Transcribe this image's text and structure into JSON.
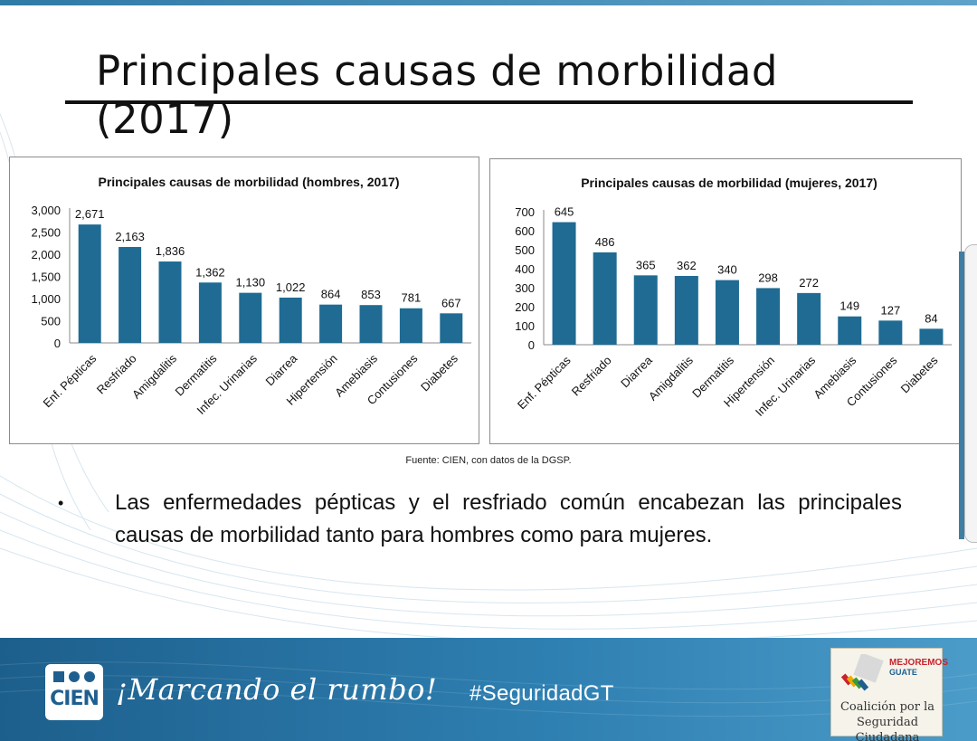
{
  "slide": {
    "title": "Principales causas de morbilidad (2017)",
    "source": "Fuente: CIEN, con datos de la DGSP.",
    "bullet": "Las enfermedades pépticas y el resfriado común encabezan las principales causas de morbilidad tanto para hombres como para mujeres."
  },
  "colors": {
    "bar": "#1f6b93",
    "accent": "#2e7fb1"
  },
  "chart_data": [
    {
      "type": "bar",
      "title": "Principales causas de morbilidad (hombres, 2017)",
      "categories": [
        "Enf. Pépticas",
        "Resfriado",
        "Amigdalitis",
        "Dermatitis",
        "Infec. Urinarias",
        "Diarrea",
        "Hipertensión",
        "Amebiasis",
        "Contusiones",
        "Diabetes"
      ],
      "values": [
        2671,
        2163,
        1836,
        1362,
        1130,
        1022,
        864,
        853,
        781,
        667
      ],
      "value_labels": [
        "2,671",
        "2,163",
        "1,836",
        "1,362",
        "1,130",
        "1,022",
        "864",
        "853",
        "781",
        "667"
      ],
      "yticks": [
        0,
        500,
        1000,
        1500,
        2000,
        2500,
        3000
      ],
      "ytick_labels": [
        "0",
        "500",
        "1,000",
        "1,500",
        "2,000",
        "2,500",
        "3,000"
      ],
      "ylim": [
        0,
        3000
      ],
      "xlabel": "",
      "ylabel": "",
      "grid": false
    },
    {
      "type": "bar",
      "title": "Principales causas de morbilidad (mujeres, 2017)",
      "categories": [
        "Enf. Pépticas",
        "Resfriado",
        "Diarrea",
        "Amigdalitis",
        "Dermatitis",
        "Hipertensión",
        "Infec. Urinarias",
        "Amebiasis",
        "Contusiones",
        "Diabetes"
      ],
      "values": [
        645,
        486,
        365,
        362,
        340,
        298,
        272,
        149,
        127,
        84
      ],
      "value_labels": [
        "645",
        "486",
        "365",
        "362",
        "340",
        "298",
        "272",
        "149",
        "127",
        "84"
      ],
      "yticks": [
        0,
        100,
        200,
        300,
        400,
        500,
        600,
        700
      ],
      "ytick_labels": [
        "0",
        "100",
        "200",
        "300",
        "400",
        "500",
        "600",
        "700"
      ],
      "ylim": [
        0,
        700
      ],
      "xlabel": "",
      "ylabel": "",
      "grid": false
    }
  ],
  "footer": {
    "logo_text": "CIEN",
    "motto": "¡Marcando el rumbo!",
    "hashtag": "#SeguridadGT",
    "partner_top": "MEJOREMOS",
    "partner_mid": "GUATE",
    "partner_line1": "Coalición por la",
    "partner_line2": "Seguridad Ciudadana"
  }
}
